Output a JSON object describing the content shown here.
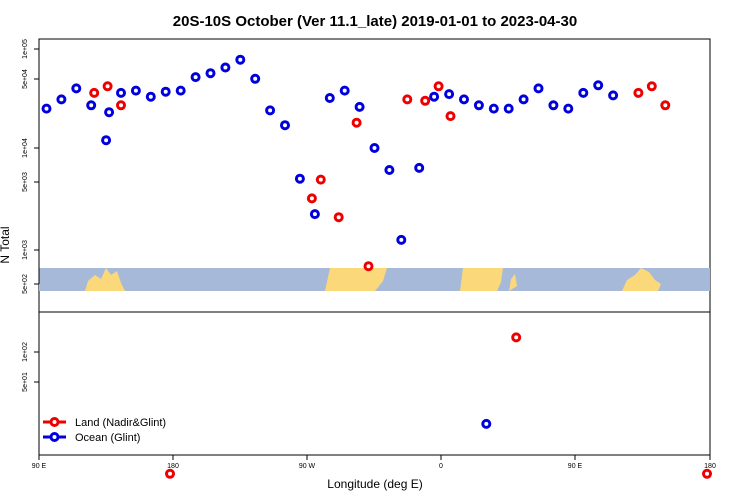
{
  "chart_data": [
    {
      "type": "scatter",
      "title": "20S-10S October (Ver 11.1_late)   2019-01-01 to 2023-04-30",
      "xlabel": "Longitude (deg E)",
      "ylabel": "N Total",
      "y_scale": "log",
      "ylim": [
        280,
        130000
      ],
      "x_ticks": [
        "90 E",
        "180",
        "90 W",
        "0",
        "90 E",
        "180"
      ],
      "y_ticks": [
        "5e+02",
        "1e+03",
        "5e+03",
        "1e+04",
        "5e+04",
        "1e+05"
      ],
      "series": [
        {
          "name": "Ocean (Glint)",
          "color": "#0000dd",
          "points": [
            [
              95,
              25000
            ],
            [
              105,
              31000
            ],
            [
              115,
              40000
            ],
            [
              125,
              27000
            ],
            [
              135,
              12000
            ],
            [
              137,
              23000
            ],
            [
              145,
              36000
            ],
            [
              155,
              38000
            ],
            [
              165,
              33000
            ],
            [
              175,
              37000
            ],
            [
              185,
              38000
            ],
            [
              195,
              52000
            ],
            [
              205,
              57000
            ],
            [
              215,
              65000
            ],
            [
              225,
              78000
            ],
            [
              235,
              50000
            ],
            [
              245,
              24000
            ],
            [
              255,
              17000
            ],
            [
              265,
              4900
            ],
            [
              275,
              2150
            ],
            [
              285,
              32000
            ],
            [
              295,
              38000
            ],
            [
              305,
              26000
            ],
            [
              315,
              10000
            ],
            [
              325,
              6000
            ],
            [
              333,
              1180
            ],
            [
              345,
              6300
            ],
            [
              355,
              33000
            ],
            [
              365,
              35000
            ],
            [
              375,
              31000
            ],
            [
              385,
              27000
            ],
            [
              395,
              25000
            ],
            [
              405,
              25000
            ],
            [
              415,
              31000
            ],
            [
              425,
              40000
            ],
            [
              435,
              27000
            ],
            [
              445,
              25000
            ],
            [
              455,
              36000
            ],
            [
              465,
              43000
            ],
            [
              475,
              34000
            ]
          ]
        },
        {
          "name": "Land (Nadir&Glint)",
          "color": "#ee0000",
          "points": [
            [
              127,
              36000
            ],
            [
              136,
              42000
            ],
            [
              145,
              27000
            ],
            [
              273,
              3100
            ],
            [
              279,
              4800
            ],
            [
              291,
              2000
            ],
            [
              303,
              18000
            ],
            [
              311,
              640
            ],
            [
              337,
              31000
            ],
            [
              349,
              30000
            ],
            [
              358,
              42000
            ],
            [
              366,
              21000
            ],
            [
              492,
              36000
            ],
            [
              501,
              42000
            ],
            [
              510,
              27000
            ]
          ]
        }
      ]
    },
    {
      "type": "scatter",
      "title": "",
      "xlabel": "Longitude (deg E)",
      "ylabel": "",
      "y_scale": "log",
      "ylim": [
        5,
        200
      ],
      "x_ticks": [
        "90 E",
        "180",
        "90 W",
        "0",
        "90 E",
        "180"
      ],
      "y_ticks": [
        "5e+01",
        "1e+02"
      ],
      "legend": [
        "Land (Nadir&Glint)",
        "Ocean (Glint)"
      ],
      "legend_position": "bottom-left",
      "series": [
        {
          "name": "Ocean (Glint)",
          "color": "#0000dd",
          "points": [
            [
              29,
              19
            ]
          ]
        },
        {
          "name": "Land (Nadir&Glint)",
          "color": "#ee0000",
          "points": [
            [
              180,
              6
            ],
            [
              50,
              140
            ],
            [
              180,
              6
            ]
          ]
        }
      ]
    }
  ],
  "colors": {
    "ocean_band": "#a6b9d8",
    "land_band": "#fbd97a"
  }
}
